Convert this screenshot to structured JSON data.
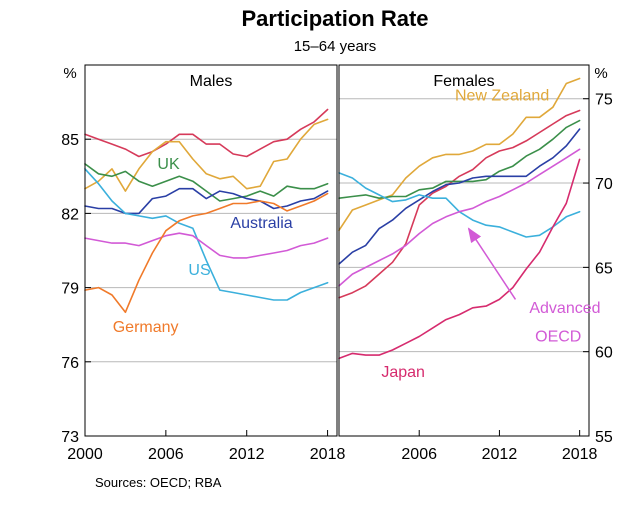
{
  "chart_data": {
    "type": "line",
    "title": "Participation Rate",
    "subtitle": "15–64 years",
    "source": "Sources:   OECD; RBA",
    "left_unit": "%",
    "right_unit": "%",
    "x_ticks": [
      "2000",
      "2006",
      "2012",
      "2018"
    ],
    "colors": {
      "grid": "#b8b8b8",
      "frame": "#000000",
      "Australia": "#2a3fa5",
      "UK": "#3b8f4a",
      "US": "#3bb0dc",
      "Germany": "#f07a2a",
      "New Zealand": "#e0a83a",
      "Advanced OECD": "#d25ad6",
      "Japan": "#d62b6e",
      "males_top": "#d63a5a"
    },
    "panels": [
      {
        "title": "Males",
        "xlim": [
          2000,
          2018.7
        ],
        "ylim": [
          73,
          88
        ],
        "y_ticks": [
          73,
          76,
          79,
          82,
          85
        ],
        "x_tick_values": [
          2000,
          2006,
          2012,
          2018
        ],
        "labels": [
          {
            "text": "UK",
            "x": 2006.2,
            "y": 83.8,
            "series": "UK"
          },
          {
            "text": "Australia",
            "x": 2013.1,
            "y": 81.4,
            "series": "Australia"
          },
          {
            "text": "US",
            "x": 2008.5,
            "y": 79.5,
            "series": "US"
          },
          {
            "text": "Germany",
            "x": 2004.5,
            "y": 77.2,
            "series": "Germany"
          }
        ],
        "series": [
          {
            "color_key": "males_top",
            "x": [
              2000,
              2001,
              2002,
              2003,
              2004,
              2005,
              2006,
              2007,
              2008,
              2009,
              2010,
              2011,
              2012,
              2013,
              2014,
              2015,
              2016,
              2017,
              2018
            ],
            "values": [
              85.2,
              85.0,
              84.8,
              84.6,
              84.3,
              84.5,
              84.8,
              85.2,
              85.2,
              84.8,
              84.8,
              84.4,
              84.3,
              84.6,
              84.9,
              85.0,
              85.4,
              85.7,
              86.2
            ]
          },
          {
            "color_key": "New Zealand",
            "x": [
              2000,
              2001,
              2002,
              2003,
              2004,
              2005,
              2006,
              2007,
              2008,
              2009,
              2010,
              2011,
              2012,
              2013,
              2014,
              2015,
              2016,
              2017,
              2018
            ],
            "values": [
              83.0,
              83.3,
              83.8,
              82.9,
              83.8,
              84.5,
              84.9,
              84.9,
              84.2,
              83.6,
              83.4,
              83.5,
              83.0,
              83.1,
              84.1,
              84.2,
              85.0,
              85.6,
              85.8
            ]
          },
          {
            "name": "UK",
            "color_key": "UK",
            "x": [
              2000,
              2001,
              2002,
              2003,
              2004,
              2005,
              2006,
              2007,
              2008,
              2009,
              2010,
              2011,
              2012,
              2013,
              2014,
              2015,
              2016,
              2017,
              2018
            ],
            "values": [
              84.0,
              83.6,
              83.5,
              83.7,
              83.3,
              83.1,
              83.3,
              83.5,
              83.3,
              82.9,
              82.5,
              82.6,
              82.7,
              82.9,
              82.7,
              83.1,
              83.0,
              83.0,
              83.2
            ]
          },
          {
            "name": "Australia",
            "color_key": "Australia",
            "x": [
              2000,
              2001,
              2002,
              2003,
              2004,
              2005,
              2006,
              2007,
              2008,
              2009,
              2010,
              2011,
              2012,
              2013,
              2014,
              2015,
              2016,
              2017,
              2018
            ],
            "values": [
              82.3,
              82.2,
              82.2,
              82.0,
              82.0,
              82.6,
              82.7,
              83.0,
              83.0,
              82.6,
              82.9,
              82.8,
              82.6,
              82.5,
              82.2,
              82.3,
              82.5,
              82.6,
              82.9
            ]
          },
          {
            "name": "US",
            "color_key": "US",
            "x": [
              2000,
              2001,
              2002,
              2003,
              2004,
              2005,
              2006,
              2007,
              2008,
              2009,
              2010,
              2011,
              2012,
              2013,
              2014,
              2015,
              2016,
              2017,
              2018
            ],
            "values": [
              83.8,
              83.2,
              82.5,
              82.0,
              81.9,
              81.8,
              81.9,
              81.6,
              81.4,
              80.1,
              78.9,
              78.8,
              78.7,
              78.6,
              78.5,
              78.5,
              78.8,
              79.0,
              79.2
            ]
          },
          {
            "color_key": "Advanced OECD",
            "x": [
              2000,
              2001,
              2002,
              2003,
              2004,
              2005,
              2006,
              2007,
              2008,
              2009,
              2010,
              2011,
              2012,
              2013,
              2014,
              2015,
              2016,
              2017,
              2018
            ],
            "values": [
              81.0,
              80.9,
              80.8,
              80.8,
              80.7,
              80.9,
              81.1,
              81.2,
              81.1,
              80.7,
              80.3,
              80.2,
              80.2,
              80.3,
              80.4,
              80.5,
              80.7,
              80.8,
              81.0
            ]
          },
          {
            "name": "Germany",
            "color_key": "Germany",
            "x": [
              2000,
              2001,
              2002,
              2003,
              2004,
              2005,
              2006,
              2007,
              2008,
              2009,
              2010,
              2011,
              2012,
              2013,
              2014,
              2015,
              2016,
              2017,
              2018
            ],
            "values": [
              78.9,
              79.0,
              78.7,
              78.0,
              79.3,
              80.4,
              81.3,
              81.7,
              81.9,
              82.0,
              82.2,
              82.4,
              82.4,
              82.5,
              82.4,
              82.1,
              82.3,
              82.5,
              82.8
            ]
          }
        ]
      },
      {
        "title": "Females",
        "xlim": [
          2000,
          2018.7
        ],
        "ylim": [
          55,
          77
        ],
        "y_ticks": [
          55,
          60,
          65,
          70,
          75
        ],
        "x_tick_values": [
          2006,
          2012,
          2018
        ],
        "labels": [
          {
            "text": "New Zealand",
            "x": 2012.2,
            "y": 74.9,
            "series": "New Zealand"
          },
          {
            "text": "Advanced",
            "x": 2016.9,
            "y": 62.3,
            "series": "Advanced OECD"
          },
          {
            "text": "OECD",
            "x": 2016.4,
            "y": 60.6,
            "series": "Advanced OECD"
          },
          {
            "text": "Japan",
            "x": 2004.8,
            "y": 58.5,
            "series": "Japan"
          }
        ],
        "arrow": {
          "from": [
            2013.2,
            63.1
          ],
          "to": [
            2009.7,
            67.3
          ],
          "series": "Advanced OECD"
        },
        "series": [
          {
            "name": "New Zealand",
            "color_key": "New Zealand",
            "x": [
              2000,
              2001,
              2002,
              2003,
              2004,
              2005,
              2006,
              2007,
              2008,
              2009,
              2010,
              2011,
              2012,
              2013,
              2014,
              2015,
              2016,
              2017,
              2018
            ],
            "values": [
              67.2,
              68.4,
              68.7,
              69.0,
              69.3,
              70.3,
              71.0,
              71.5,
              71.7,
              71.7,
              71.9,
              72.3,
              72.3,
              72.9,
              73.9,
              73.9,
              74.5,
              75.9,
              76.2
            ]
          },
          {
            "color_key": "males_top",
            "x": [
              2000,
              2001,
              2002,
              2003,
              2004,
              2005,
              2006,
              2007,
              2008,
              2009,
              2010,
              2011,
              2012,
              2013,
              2014,
              2015,
              2016,
              2017,
              2018
            ],
            "values": [
              63.2,
              63.5,
              63.9,
              64.6,
              65.3,
              66.4,
              68.7,
              69.4,
              69.8,
              70.4,
              70.8,
              71.5,
              71.9,
              72.1,
              72.5,
              73.0,
              73.5,
              74.0,
              74.3
            ]
          },
          {
            "color_key": "UK",
            "x": [
              2000,
              2001,
              2002,
              2003,
              2004,
              2005,
              2006,
              2007,
              2008,
              2009,
              2010,
              2011,
              2012,
              2013,
              2014,
              2015,
              2016,
              2017,
              2018
            ],
            "values": [
              69.1,
              69.2,
              69.3,
              69.1,
              69.2,
              69.2,
              69.6,
              69.7,
              70.1,
              70.1,
              70.1,
              70.2,
              70.7,
              71.0,
              71.6,
              72.0,
              72.6,
              73.3,
              73.7
            ]
          },
          {
            "color_key": "Australia",
            "x": [
              2000,
              2001,
              2002,
              2003,
              2004,
              2005,
              2006,
              2007,
              2008,
              2009,
              2010,
              2011,
              2012,
              2013,
              2014,
              2015,
              2016,
              2017,
              2018
            ],
            "values": [
              65.2,
              65.9,
              66.3,
              67.3,
              67.8,
              68.5,
              69.0,
              69.5,
              69.9,
              70.0,
              70.3,
              70.4,
              70.4,
              70.4,
              70.4,
              71.0,
              71.5,
              72.2,
              73.2
            ]
          },
          {
            "color_key": "US",
            "x": [
              2000,
              2001,
              2002,
              2003,
              2004,
              2005,
              2006,
              2007,
              2008,
              2009,
              2010,
              2011,
              2012,
              2013,
              2014,
              2015,
              2016,
              2017,
              2018
            ],
            "values": [
              70.6,
              70.3,
              69.7,
              69.3,
              68.9,
              69.0,
              69.3,
              69.1,
              69.1,
              68.3,
              67.8,
              67.5,
              67.4,
              67.1,
              66.8,
              66.9,
              67.4,
              68.0,
              68.3
            ]
          },
          {
            "name": "Advanced OECD",
            "color_key": "Advanced OECD",
            "x": [
              2000,
              2001,
              2002,
              2003,
              2004,
              2005,
              2006,
              2007,
              2008,
              2009,
              2010,
              2011,
              2012,
              2013,
              2014,
              2015,
              2016,
              2017,
              2018
            ],
            "values": [
              63.9,
              64.6,
              65.0,
              65.4,
              65.8,
              66.3,
              67.0,
              67.6,
              68.0,
              68.3,
              68.5,
              68.9,
              69.2,
              69.6,
              70.0,
              70.5,
              71.0,
              71.5,
              72.0
            ]
          },
          {
            "name": "Japan",
            "color_key": "Japan",
            "x": [
              2000,
              2001,
              2002,
              2003,
              2004,
              2005,
              2006,
              2007,
              2008,
              2009,
              2010,
              2011,
              2012,
              2013,
              2014,
              2015,
              2016,
              2017,
              2018
            ],
            "values": [
              59.6,
              59.9,
              59.8,
              59.8,
              60.1,
              60.5,
              60.9,
              61.4,
              61.9,
              62.2,
              62.6,
              62.7,
              63.1,
              63.8,
              64.9,
              65.9,
              67.4,
              68.8,
              71.4
            ]
          }
        ]
      }
    ]
  }
}
